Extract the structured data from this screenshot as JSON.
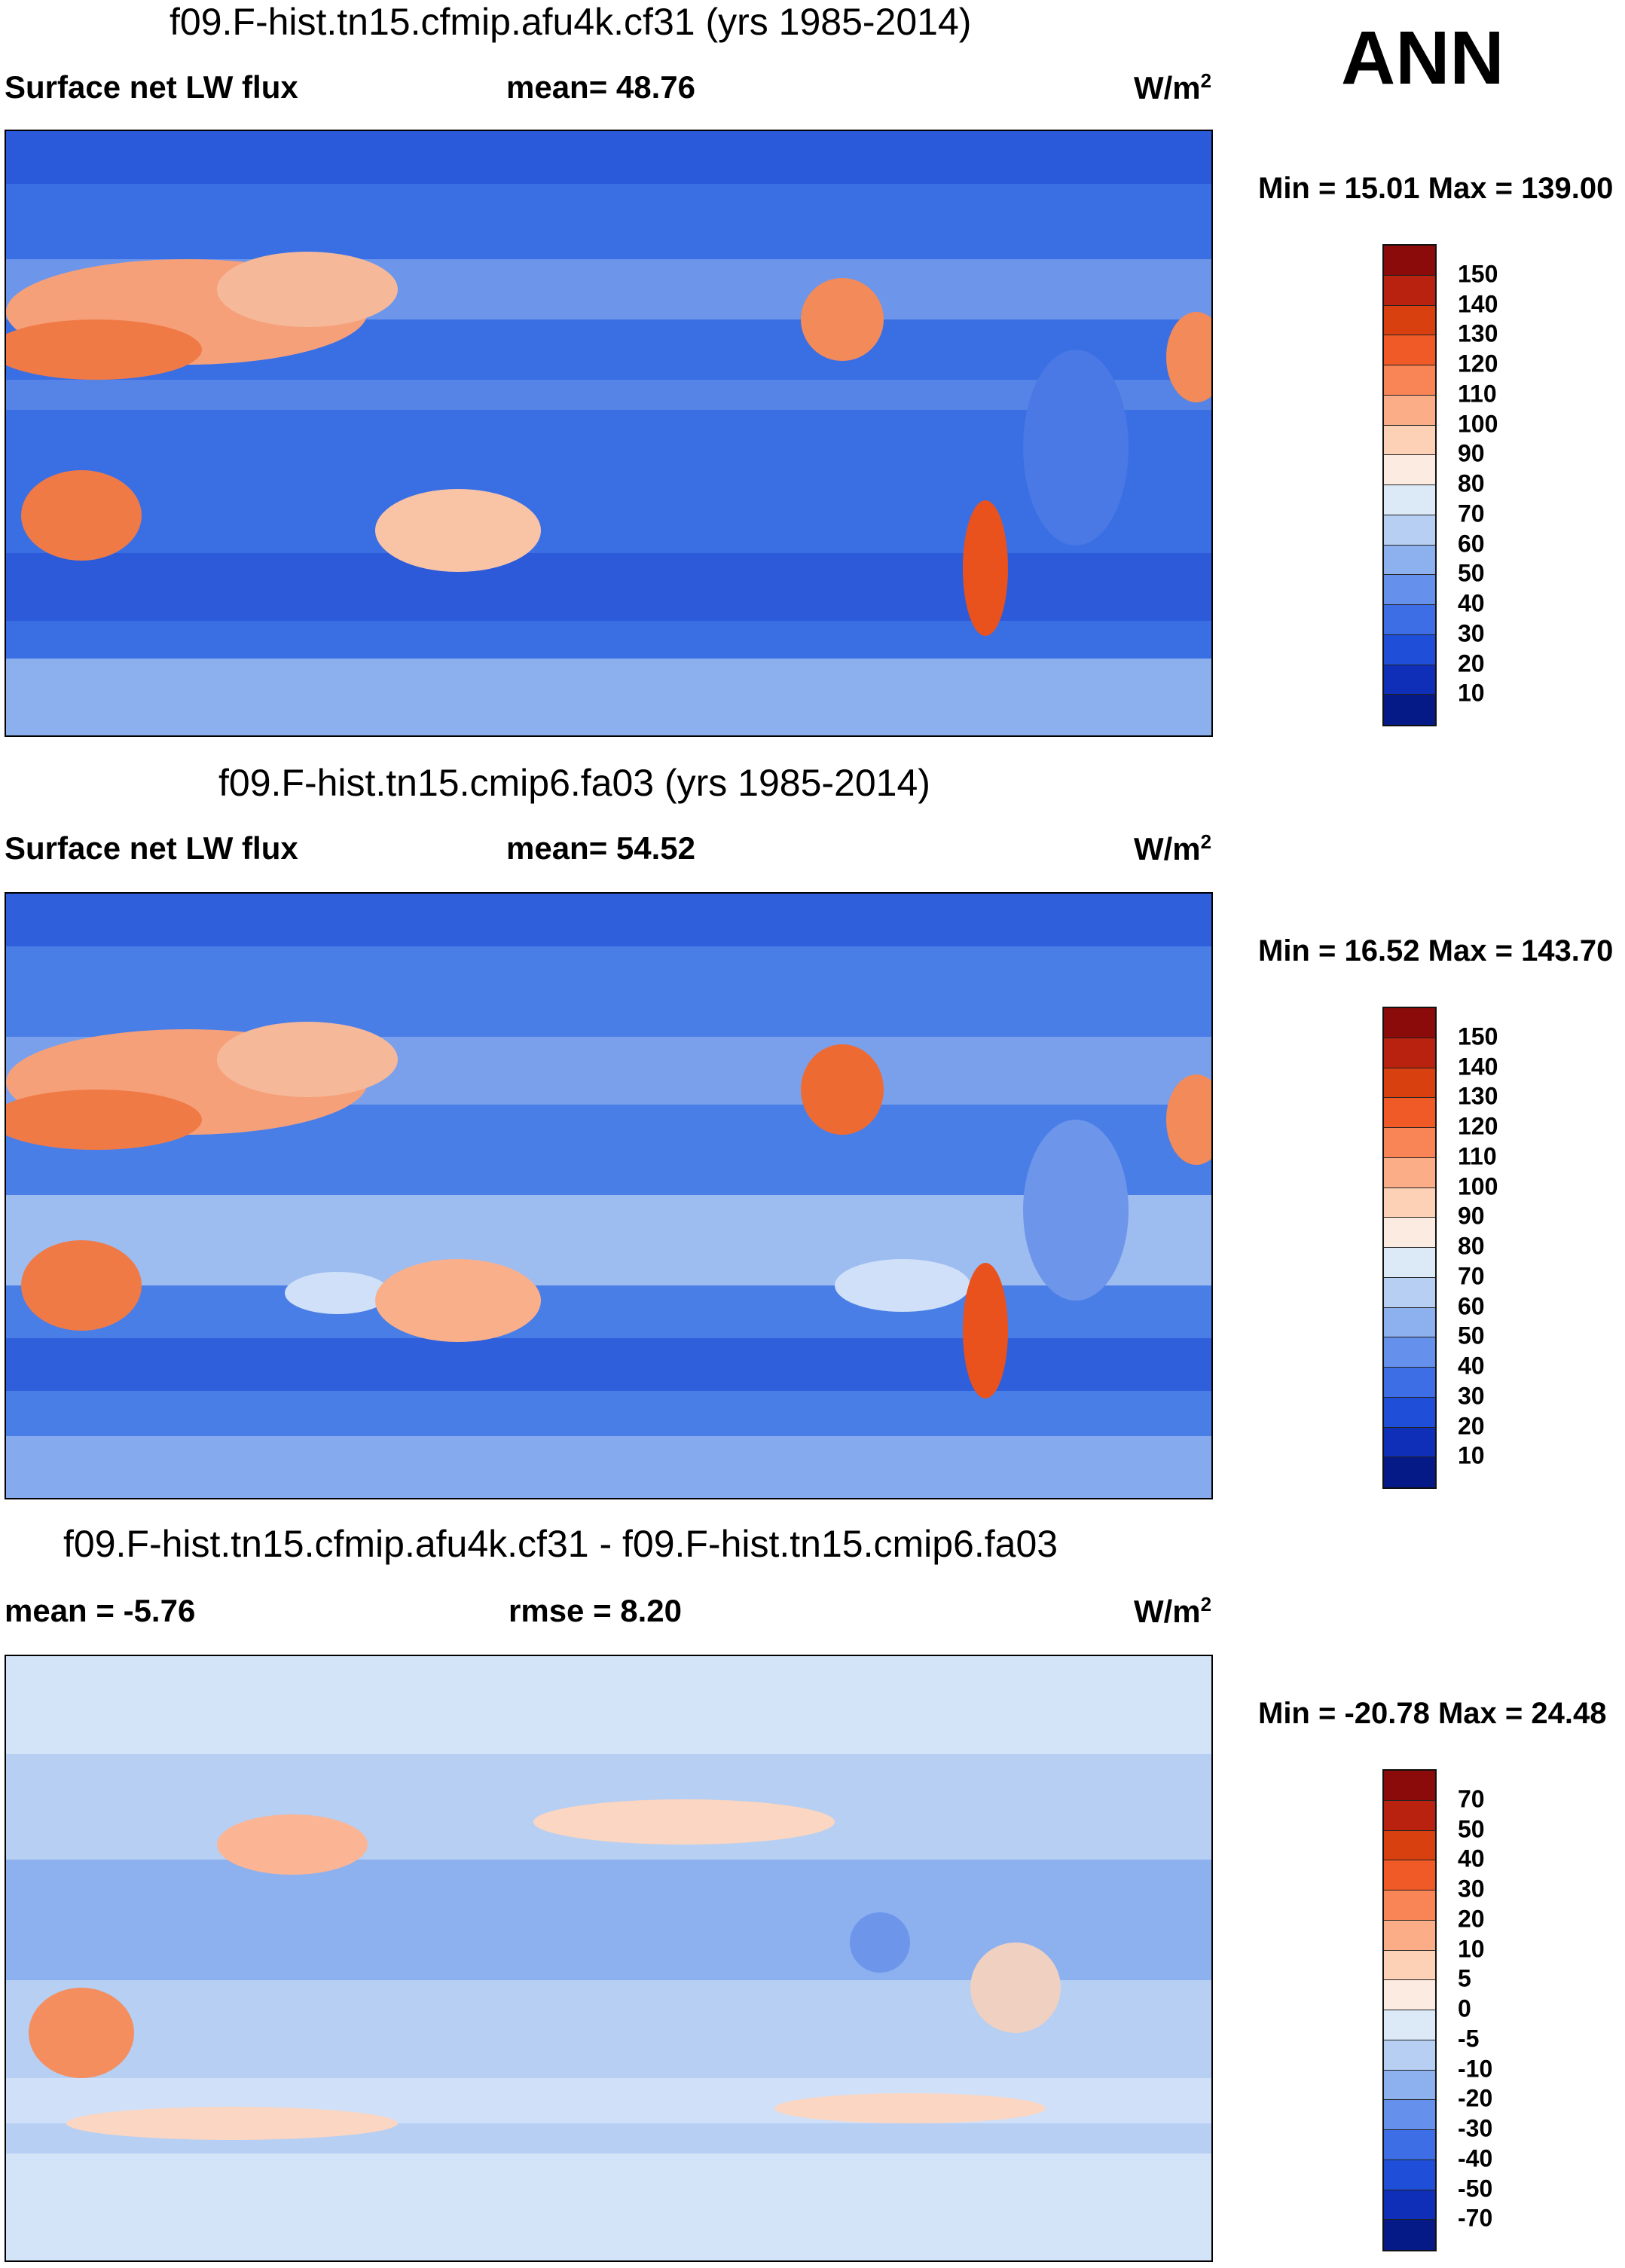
{
  "season": "ANN",
  "panels": [
    {
      "title": "f09.F-hist.tn15.cfmip.afu4k.cf31 (yrs 1985-2014)",
      "left_label": "Surface net LW flux",
      "center_label": "mean=  48.76",
      "units": "W/m",
      "units_sup": "2",
      "minmax": "Min =  15.01 Max = 139.00",
      "colorbar_levels": [
        "150",
        "140",
        "130",
        "120",
        "110",
        "100",
        "90",
        "80",
        "70",
        "60",
        "50",
        "40",
        "30",
        "20",
        "10"
      ],
      "colorbar_colors": [
        "#8b0a0a",
        "#b8220e",
        "#d8400f",
        "#f05a26",
        "#f98556",
        "#fbad87",
        "#fdd1b5",
        "#fcebe0",
        "#dceaf8",
        "#b6cff2",
        "#8cb1ee",
        "#6590ec",
        "#3d6ee6",
        "#1f4fd9",
        "#0f2fb8",
        "#061a87"
      ]
    },
    {
      "title": "f09.F-hist.tn15.cmip6.fa03 (yrs 1985-2014)",
      "left_label": "Surface net LW flux",
      "center_label": "mean=  54.52",
      "units": "W/m",
      "units_sup": "2",
      "minmax": "Min =  16.52 Max = 143.70",
      "colorbar_levels": [
        "150",
        "140",
        "130",
        "120",
        "110",
        "100",
        "90",
        "80",
        "70",
        "60",
        "50",
        "40",
        "30",
        "20",
        "10"
      ],
      "colorbar_colors": [
        "#8b0a0a",
        "#b8220e",
        "#d8400f",
        "#f05a26",
        "#f98556",
        "#fbad87",
        "#fdd1b5",
        "#fcebe0",
        "#dceaf8",
        "#b6cff2",
        "#8cb1ee",
        "#6590ec",
        "#3d6ee6",
        "#1f4fd9",
        "#0f2fb8",
        "#061a87"
      ]
    },
    {
      "title": "f09.F-hist.tn15.cfmip.afu4k.cf31 - f09.F-hist.tn15.cmip6.fa03",
      "left_label": "mean =  -5.76",
      "center_label": "rmse =    8.20",
      "units": "W/m",
      "units_sup": "2",
      "minmax": "Min = -20.78 Max =  24.48",
      "colorbar_levels": [
        "70",
        "50",
        "40",
        "30",
        "20",
        "10",
        "5",
        "0",
        "-5",
        "-10",
        "-20",
        "-30",
        "-40",
        "-50",
        "-70"
      ],
      "colorbar_colors": [
        "#8b0a0a",
        "#b8220e",
        "#d8400f",
        "#f05a26",
        "#f98556",
        "#fbad87",
        "#fdd1b5",
        "#fcebe0",
        "#dceaf8",
        "#b6cff2",
        "#8cb1ee",
        "#6590ec",
        "#3d6ee6",
        "#1f4fd9",
        "#0f2fb8",
        "#061a87"
      ]
    }
  ]
}
